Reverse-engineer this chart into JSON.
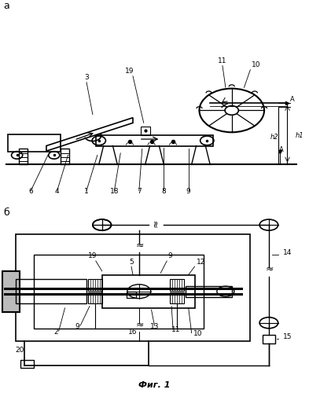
{
  "title": "Фиг. 1",
  "label_a": "а",
  "label_b": "б",
  "bg_color": "#ffffff",
  "line_color": "#000000",
  "gray_color": "#888888",
  "light_gray": "#cccccc",
  "fig_width": 3.93,
  "fig_height": 5.0,
  "dpi": 100
}
